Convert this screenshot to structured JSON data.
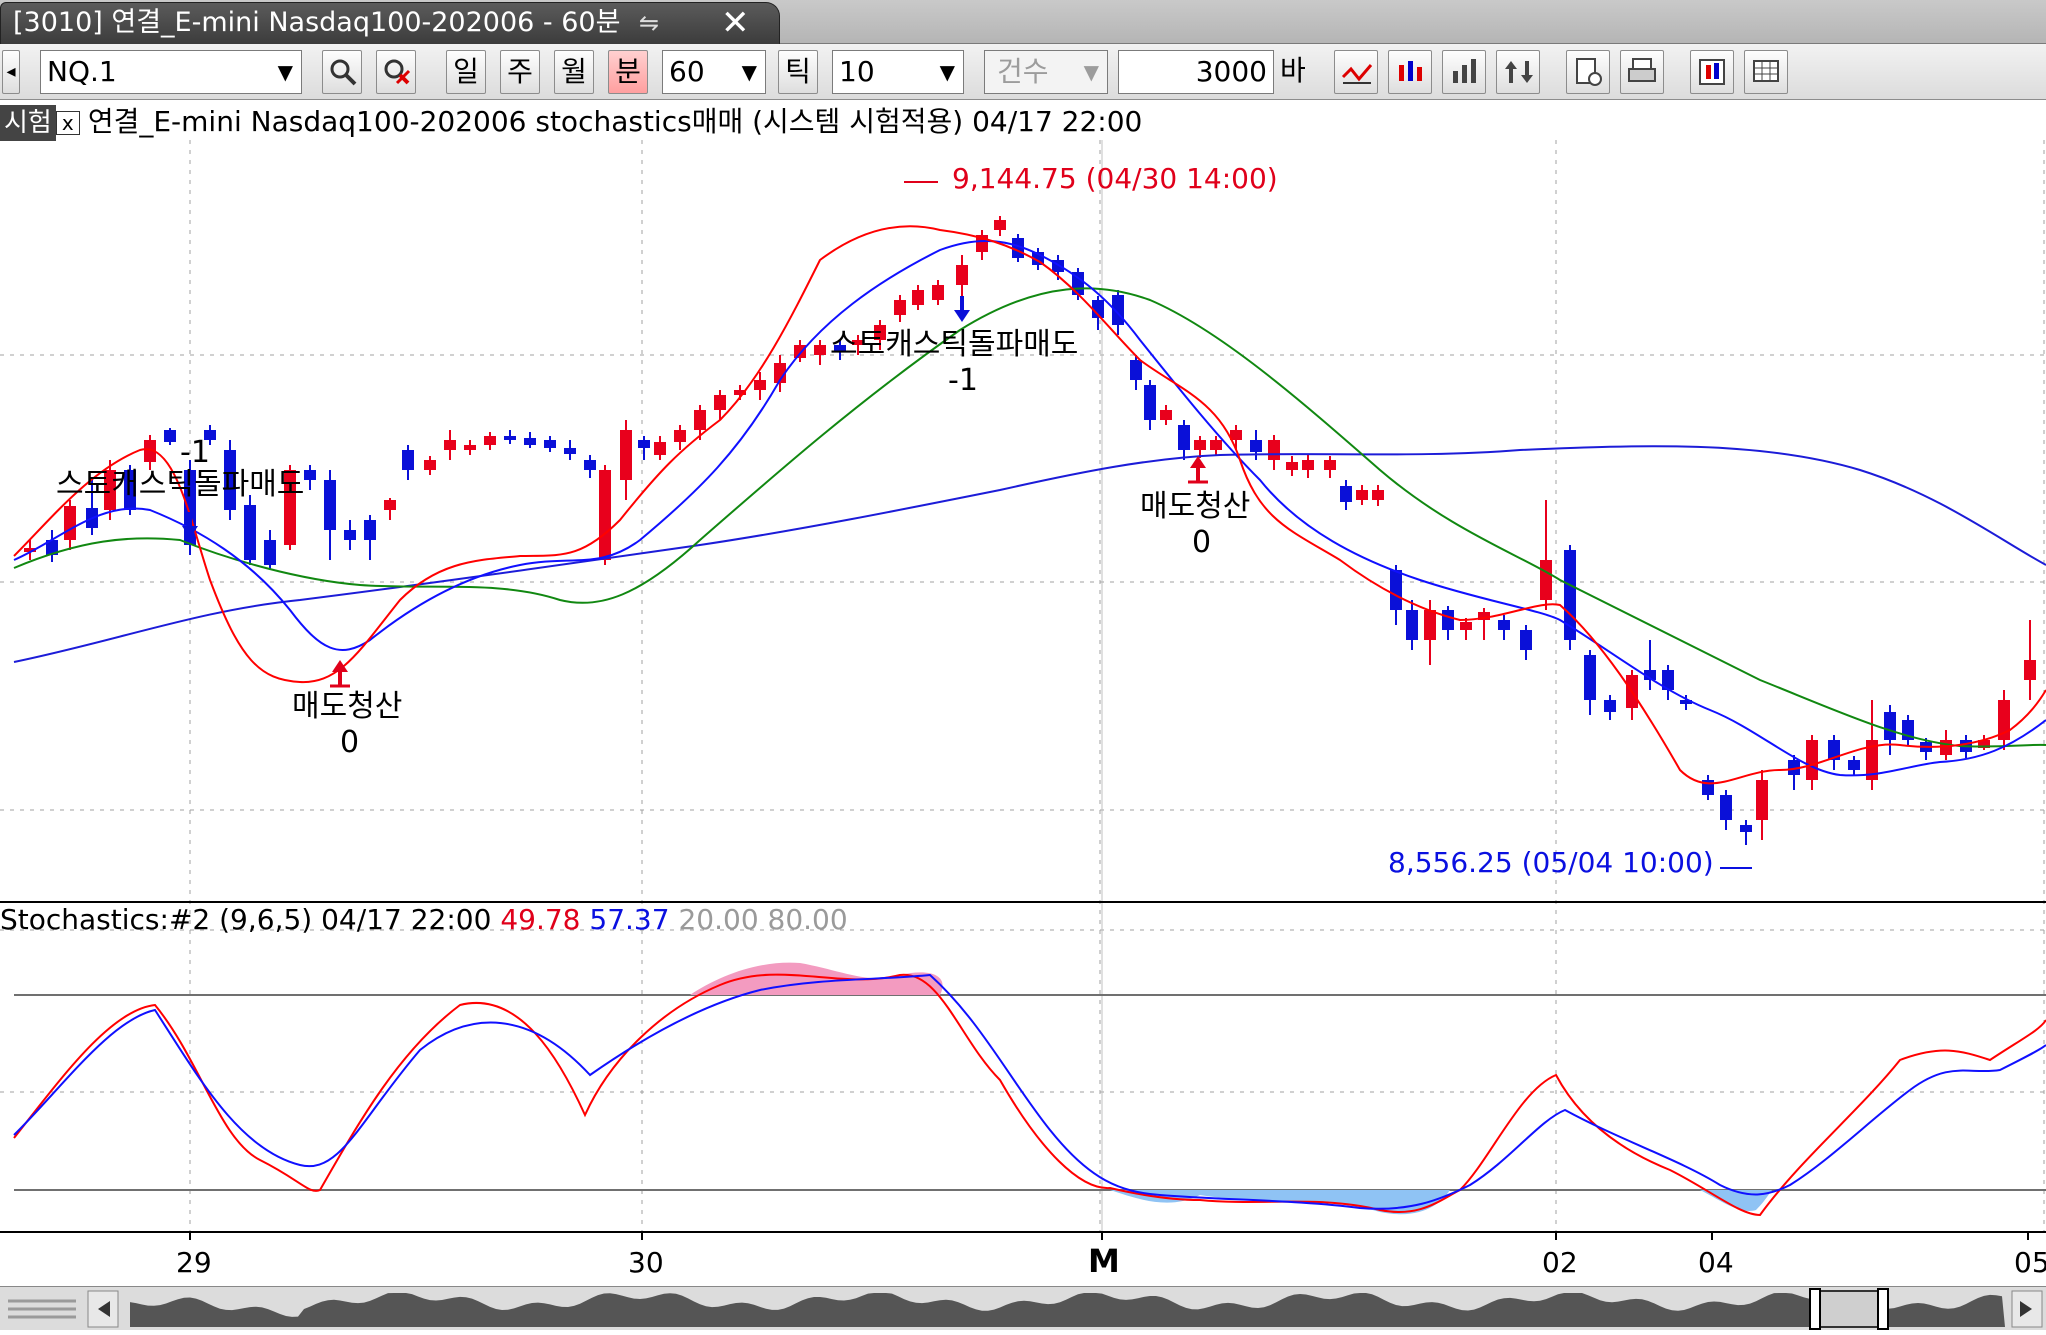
{
  "window": {
    "tab_title": "[3010] 연결_E-mini Nasdaq100-202006 - 60분",
    "link_icon": "link-icon",
    "close_label": "✕"
  },
  "toolbar": {
    "symbol": "NQ.1",
    "period_buttons": [
      "일",
      "주",
      "월",
      "분"
    ],
    "active_period": "분",
    "minutes_value": "60",
    "tick_label": "틱",
    "tick_value": "10",
    "count_label": "건수",
    "count_value": "3000",
    "bar_label": "바"
  },
  "legend": {
    "tag": "시험",
    "text": "연결_E-mini Nasdaq100-202006 stochastics매매 (시스템 시험적용) 04/17 22:00"
  },
  "stoch_legend": {
    "name": "Stochastics:#2  (9,6,5) 04/17 22:00",
    "k_value": "49.78",
    "d_value": "57.37",
    "levels": "20.00 80.00"
  },
  "annotations": {
    "high": "9,144.75 (04/30 14:00)",
    "low": "8,556.25 (05/04 10:00)",
    "sell1": "스토캐스틱돌파매도",
    "sell1_qty": "-1",
    "cover1": "매도청산",
    "cover1_qty": "0",
    "sell2": "스토캐스틱돌파매도",
    "sell2_qty": "-1",
    "cover2": "매도청산",
    "cover2_qty": "0"
  },
  "x_axis": [
    "29",
    "30",
    "M",
    "02",
    "04",
    "05"
  ],
  "colors": {
    "up": "#e8001c",
    "down": "#0a10d8",
    "ma_red": "#ff0000",
    "ma_blue": "#1010ff",
    "ma_green": "#118811",
    "ma_long": "#1c1cd8",
    "overbought_fill": "#f39bc0",
    "oversold_fill": "#8fc3f4"
  }
}
